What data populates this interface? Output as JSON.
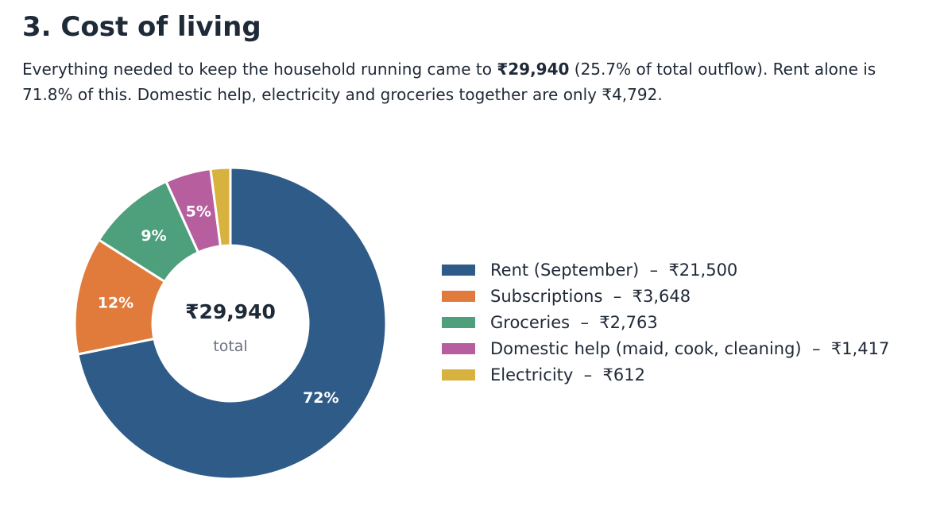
{
  "heading": "3. Cost of living",
  "summary": {
    "pre": "Everything needed to keep the household running came to ",
    "amount": "₹29,940",
    "post": " (25.7% of total outflow). Rent alone is 71.8% of this. Domestic help, electricity and groceries together are only ₹4,792."
  },
  "chart_data": {
    "type": "pie",
    "donut": true,
    "center_value": "₹29,940",
    "center_label": "total",
    "categories": [
      "Rent (September)",
      "Subscriptions",
      "Groceries",
      "Domestic help (maid, cook, cleaning)",
      "Electricity"
    ],
    "values": [
      21500,
      3648,
      2763,
      1417,
      612
    ],
    "value_labels": [
      "₹21,500",
      "₹3,648",
      "₹2,763",
      "₹1,417",
      "₹612"
    ],
    "slice_labels": [
      "72%",
      "12%",
      "9%",
      "5%",
      ""
    ],
    "colors": [
      "#2e5b87",
      "#e07b3c",
      "#4e9f7c",
      "#b65e9e",
      "#d8b23e"
    ],
    "start_angle": "top",
    "direction": "clockwise",
    "legend": "right"
  }
}
